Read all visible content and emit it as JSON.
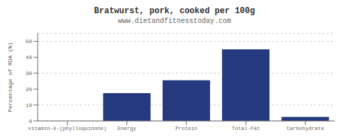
{
  "chart_data": {
    "type": "bar",
    "title": "Bratwurst, pork, cooked per 100g",
    "subtitle": "www.dietandfitnesstoday.com",
    "categories": [
      "vitamin-k-(phylloquinone)",
      "Energy",
      "Protein",
      "Total-Fat",
      "Carbohydrate"
    ],
    "values": [
      0,
      17.5,
      25.5,
      45,
      2.5
    ],
    "color": "#253A7E",
    "ylabel": "Percentage of RDA (%)",
    "ylim": [
      0,
      55
    ],
    "yticks": [
      0,
      10,
      20,
      30,
      40,
      50
    ],
    "grid": true
  }
}
